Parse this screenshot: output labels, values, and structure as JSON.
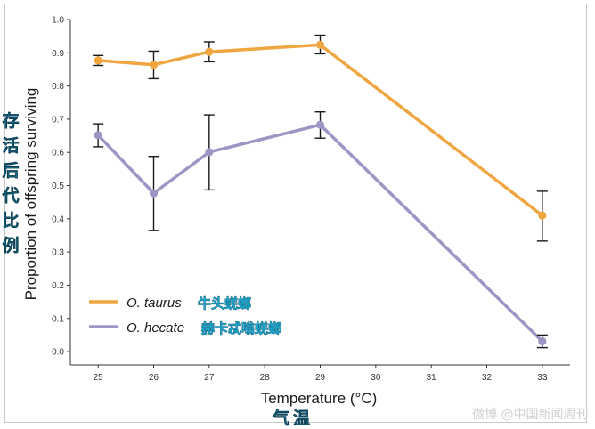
{
  "chart_data": {
    "type": "line",
    "x": [
      25,
      26,
      27,
      29,
      33
    ],
    "xticks": [
      25,
      26,
      27,
      28,
      29,
      30,
      31,
      32,
      33
    ],
    "xlim": [
      24.5,
      33.5
    ],
    "yticks": [
      0.0,
      0.1,
      0.2,
      0.3,
      0.4,
      0.5,
      0.6,
      0.7,
      0.8,
      0.9,
      1.0
    ],
    "ylim": [
      -0.04,
      1.0
    ],
    "xlabel": "Temperature (°C)",
    "ylabel": "Proportion of offspring surviving",
    "legend_position": "bottom-left",
    "grid": false,
    "series": [
      {
        "name": "O. taurus",
        "color": "#f0a640",
        "values": [
          0.877,
          0.864,
          0.903,
          0.924,
          0.41
        ],
        "err_low": [
          0.862,
          0.822,
          0.873,
          0.897,
          0.333
        ],
        "err_high": [
          0.892,
          0.905,
          0.933,
          0.953,
          0.483
        ]
      },
      {
        "name": "O. hecate",
        "color": "#9e95c5",
        "values": [
          0.652,
          0.477,
          0.601,
          0.683,
          0.031
        ],
        "err_low": [
          0.617,
          0.365,
          0.487,
          0.643,
          0.012
        ],
        "err_high": [
          0.686,
          0.588,
          0.713,
          0.722,
          0.05
        ]
      }
    ]
  },
  "annotations": {
    "legend_cn": [
      "牛头蜣螂",
      "赫卡忒嗡蜣螂"
    ],
    "ylabel_cn": "存活后代比例",
    "xlabel_cn": "气温",
    "watermark": "微博 @中国新闻周刊"
  }
}
